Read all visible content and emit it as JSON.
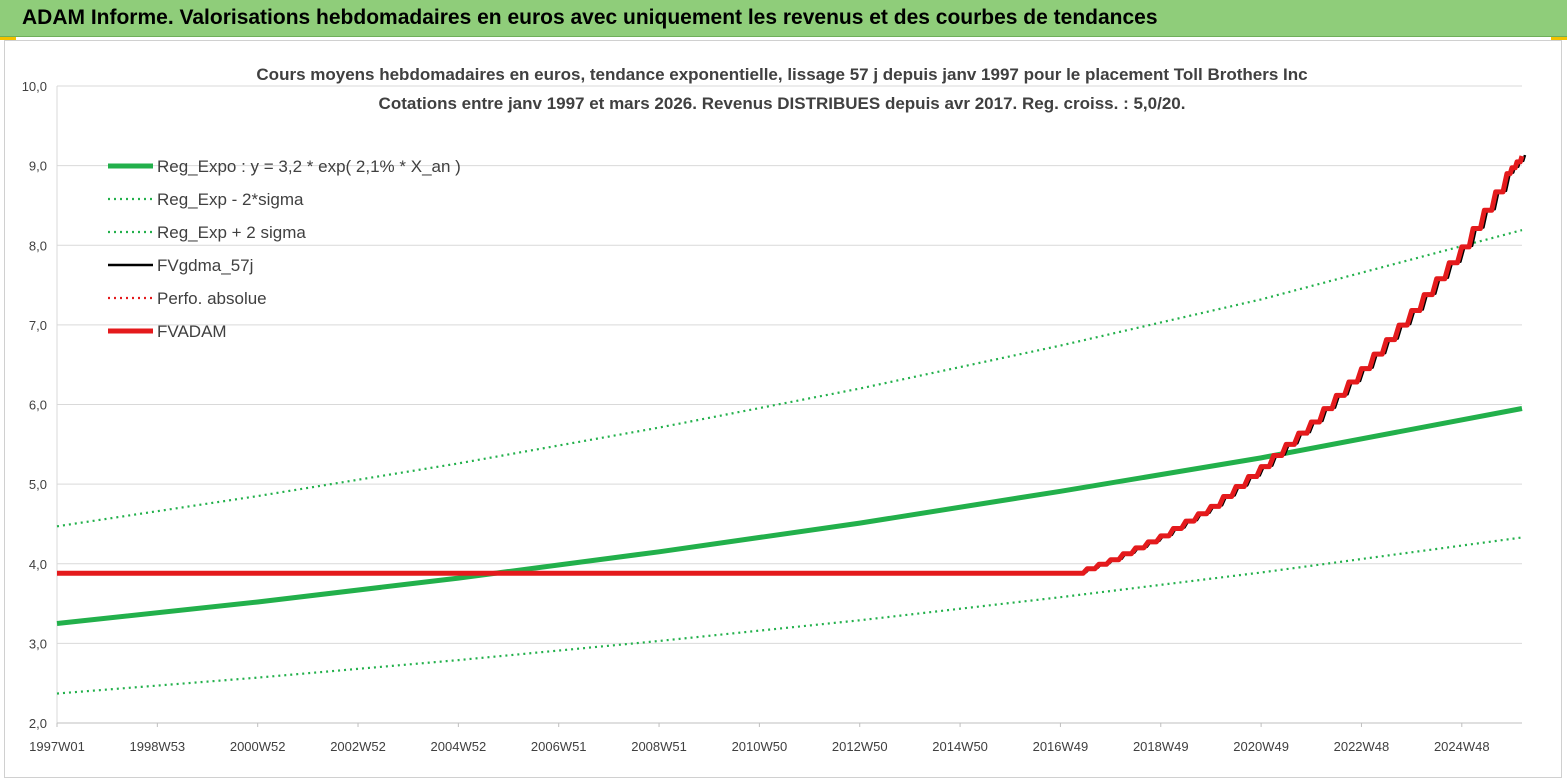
{
  "header": {
    "title": "ADAM Informe. Valorisations hebdomadaires en euros avec uniquement les revenus et des courbes de tendances"
  },
  "chart_data": {
    "type": "line",
    "title_lines": [
      "Cours moyens hebdomadaires en euros, tendance exponentielle, lissage 57 j depuis janv 1997 pour le placement Toll Brothers Inc",
      "Cotations entre janv 1997 et mars 2026. Revenus DISTRIBUES depuis avr 2017. Reg. croiss. : 5,0/20."
    ],
    "xlabel": "",
    "ylabel": "",
    "x_range": [
      1997.0,
      2026.2
    ],
    "ylim": [
      2.0,
      10.0
    ],
    "y_ticks": [
      "2,0",
      "3,0",
      "4,0",
      "5,0",
      "6,0",
      "7,0",
      "8,0",
      "9,0",
      "10,0"
    ],
    "x_ticks": [
      {
        "label": "1997W01",
        "x": 1997.0
      },
      {
        "label": "1998W53",
        "x": 1999.0
      },
      {
        "label": "2000W52",
        "x": 2001.0
      },
      {
        "label": "2002W52",
        "x": 2003.0
      },
      {
        "label": "2004W52",
        "x": 2005.0
      },
      {
        "label": "2006W51",
        "x": 2007.0
      },
      {
        "label": "2008W51",
        "x": 2009.0
      },
      {
        "label": "2010W50",
        "x": 2011.0
      },
      {
        "label": "2012W50",
        "x": 2013.0
      },
      {
        "label": "2014W50",
        "x": 2015.0
      },
      {
        "label": "2016W49",
        "x": 2017.0
      },
      {
        "label": "2018W49",
        "x": 2019.0
      },
      {
        "label": "2020W49",
        "x": 2021.0
      },
      {
        "label": "2022W48",
        "x": 2023.0
      },
      {
        "label": "2024W48",
        "x": 2025.0
      }
    ],
    "grid": "horizontal",
    "legend_position": "top-left",
    "series": [
      {
        "name": "Reg_Expo : y = 3,2 * exp( 2,1% *  X_an )",
        "color": "#22b04b",
        "style": "solid-thick",
        "x": [
          1997.0,
          2001.0,
          2005.0,
          2009.0,
          2013.0,
          2017.0,
          2021.0,
          2026.2
        ],
        "y": [
          3.25,
          3.52,
          3.82,
          4.15,
          4.51,
          4.91,
          5.33,
          5.95
        ]
      },
      {
        "name": "Reg_Exp - 2*sigma",
        "color": "#22b04b",
        "style": "dotted",
        "x": [
          1997.0,
          2001.0,
          2005.0,
          2009.0,
          2013.0,
          2017.0,
          2021.0,
          2026.2
        ],
        "y": [
          2.37,
          2.57,
          2.79,
          3.03,
          3.29,
          3.58,
          3.89,
          4.33
        ]
      },
      {
        "name": "Reg_Exp + 2 sigma",
        "color": "#22b04b",
        "style": "dotted",
        "x": [
          1997.0,
          2001.0,
          2005.0,
          2009.0,
          2013.0,
          2017.0,
          2021.0,
          2026.2
        ],
        "y": [
          4.47,
          4.85,
          5.26,
          5.71,
          6.2,
          6.74,
          7.32,
          8.19
        ]
      },
      {
        "name": "FVgdma_57j",
        "color": "#000000",
        "style": "solid",
        "x": [
          1997.0,
          2017.3,
          2018.0,
          2019.0,
          2020.0,
          2021.0,
          2022.0,
          2023.0,
          2024.0,
          2025.0,
          2025.9,
          2026.2
        ],
        "y": [
          3.88,
          3.88,
          4.05,
          4.35,
          4.72,
          5.22,
          5.78,
          6.45,
          7.18,
          7.98,
          8.9,
          9.12
        ]
      },
      {
        "name": "Perfo. absolue",
        "color": "#e41a1c",
        "style": "dotted",
        "x": [],
        "y": []
      },
      {
        "name": "FVADAM",
        "color": "#e41a1c",
        "style": "solid-thick",
        "x": [
          1997.0,
          2017.3,
          2018.0,
          2019.0,
          2020.0,
          2021.0,
          2022.0,
          2023.0,
          2024.0,
          2025.0,
          2025.9,
          2026.2
        ],
        "y": [
          3.88,
          3.88,
          4.05,
          4.35,
          4.72,
          5.22,
          5.78,
          6.45,
          7.18,
          7.98,
          8.9,
          9.12
        ]
      }
    ]
  }
}
